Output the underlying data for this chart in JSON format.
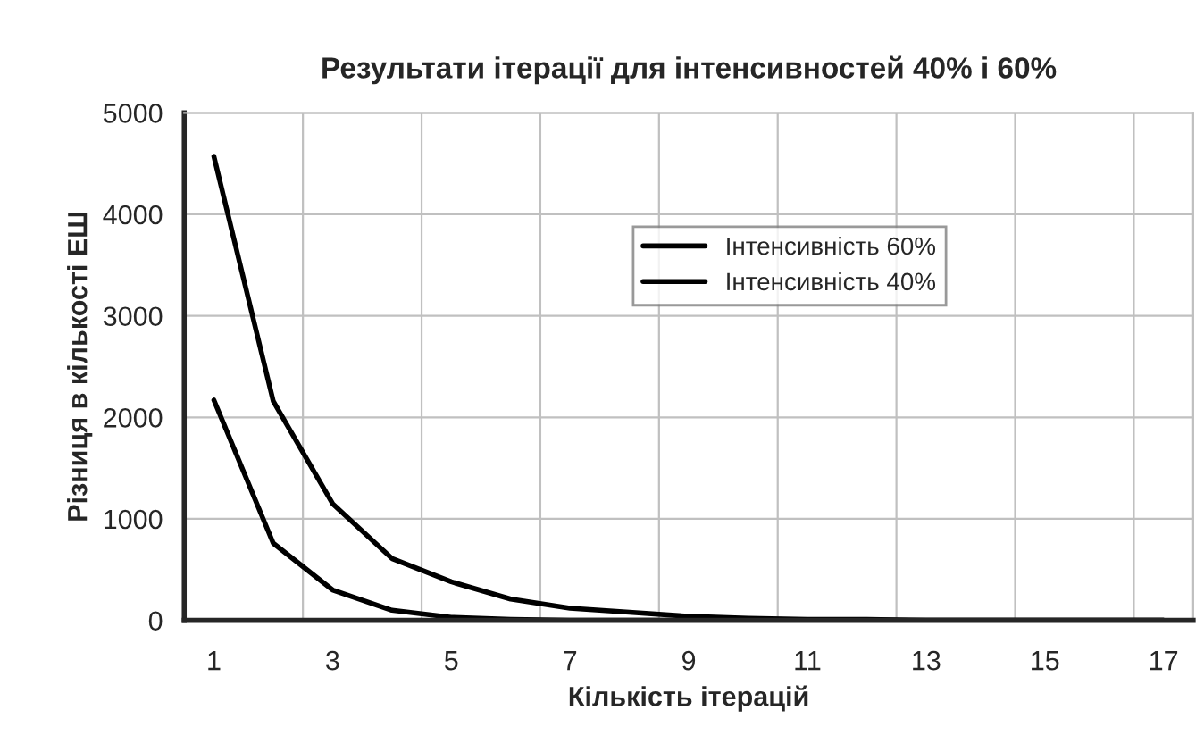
{
  "chart_data": {
    "type": "line",
    "title": "Результати ітерації для інтенсивностей 40% і 60%",
    "xlabel": "Кількість ітерацій",
    "ylabel": "Різниця в кількості ЕШ",
    "categories": [
      "1",
      null,
      "3",
      null,
      "5",
      null,
      "7",
      null,
      "9",
      null,
      "11",
      null,
      "13",
      null,
      "15",
      null,
      "17"
    ],
    "series": [
      {
        "name": "Інтенсивність 60%",
        "color": "#000000",
        "values": [
          4570,
          2160,
          1150,
          610,
          380,
          210,
          120,
          80,
          40,
          20,
          10,
          10,
          0,
          0,
          0,
          0,
          0
        ]
      },
      {
        "name": "Інтенсивність 40%",
        "color": "#000000",
        "values": [
          2170,
          760,
          300,
          100,
          30,
          10,
          0,
          0,
          0,
          0,
          0,
          0,
          0,
          0,
          0,
          0,
          0
        ]
      }
    ],
    "ylim": [
      0,
      5000
    ],
    "yticks": [
      0,
      1000,
      2000,
      3000,
      4000,
      5000
    ],
    "grid": true,
    "legend": "top",
    "marker": "none",
    "line_style": "solid"
  }
}
